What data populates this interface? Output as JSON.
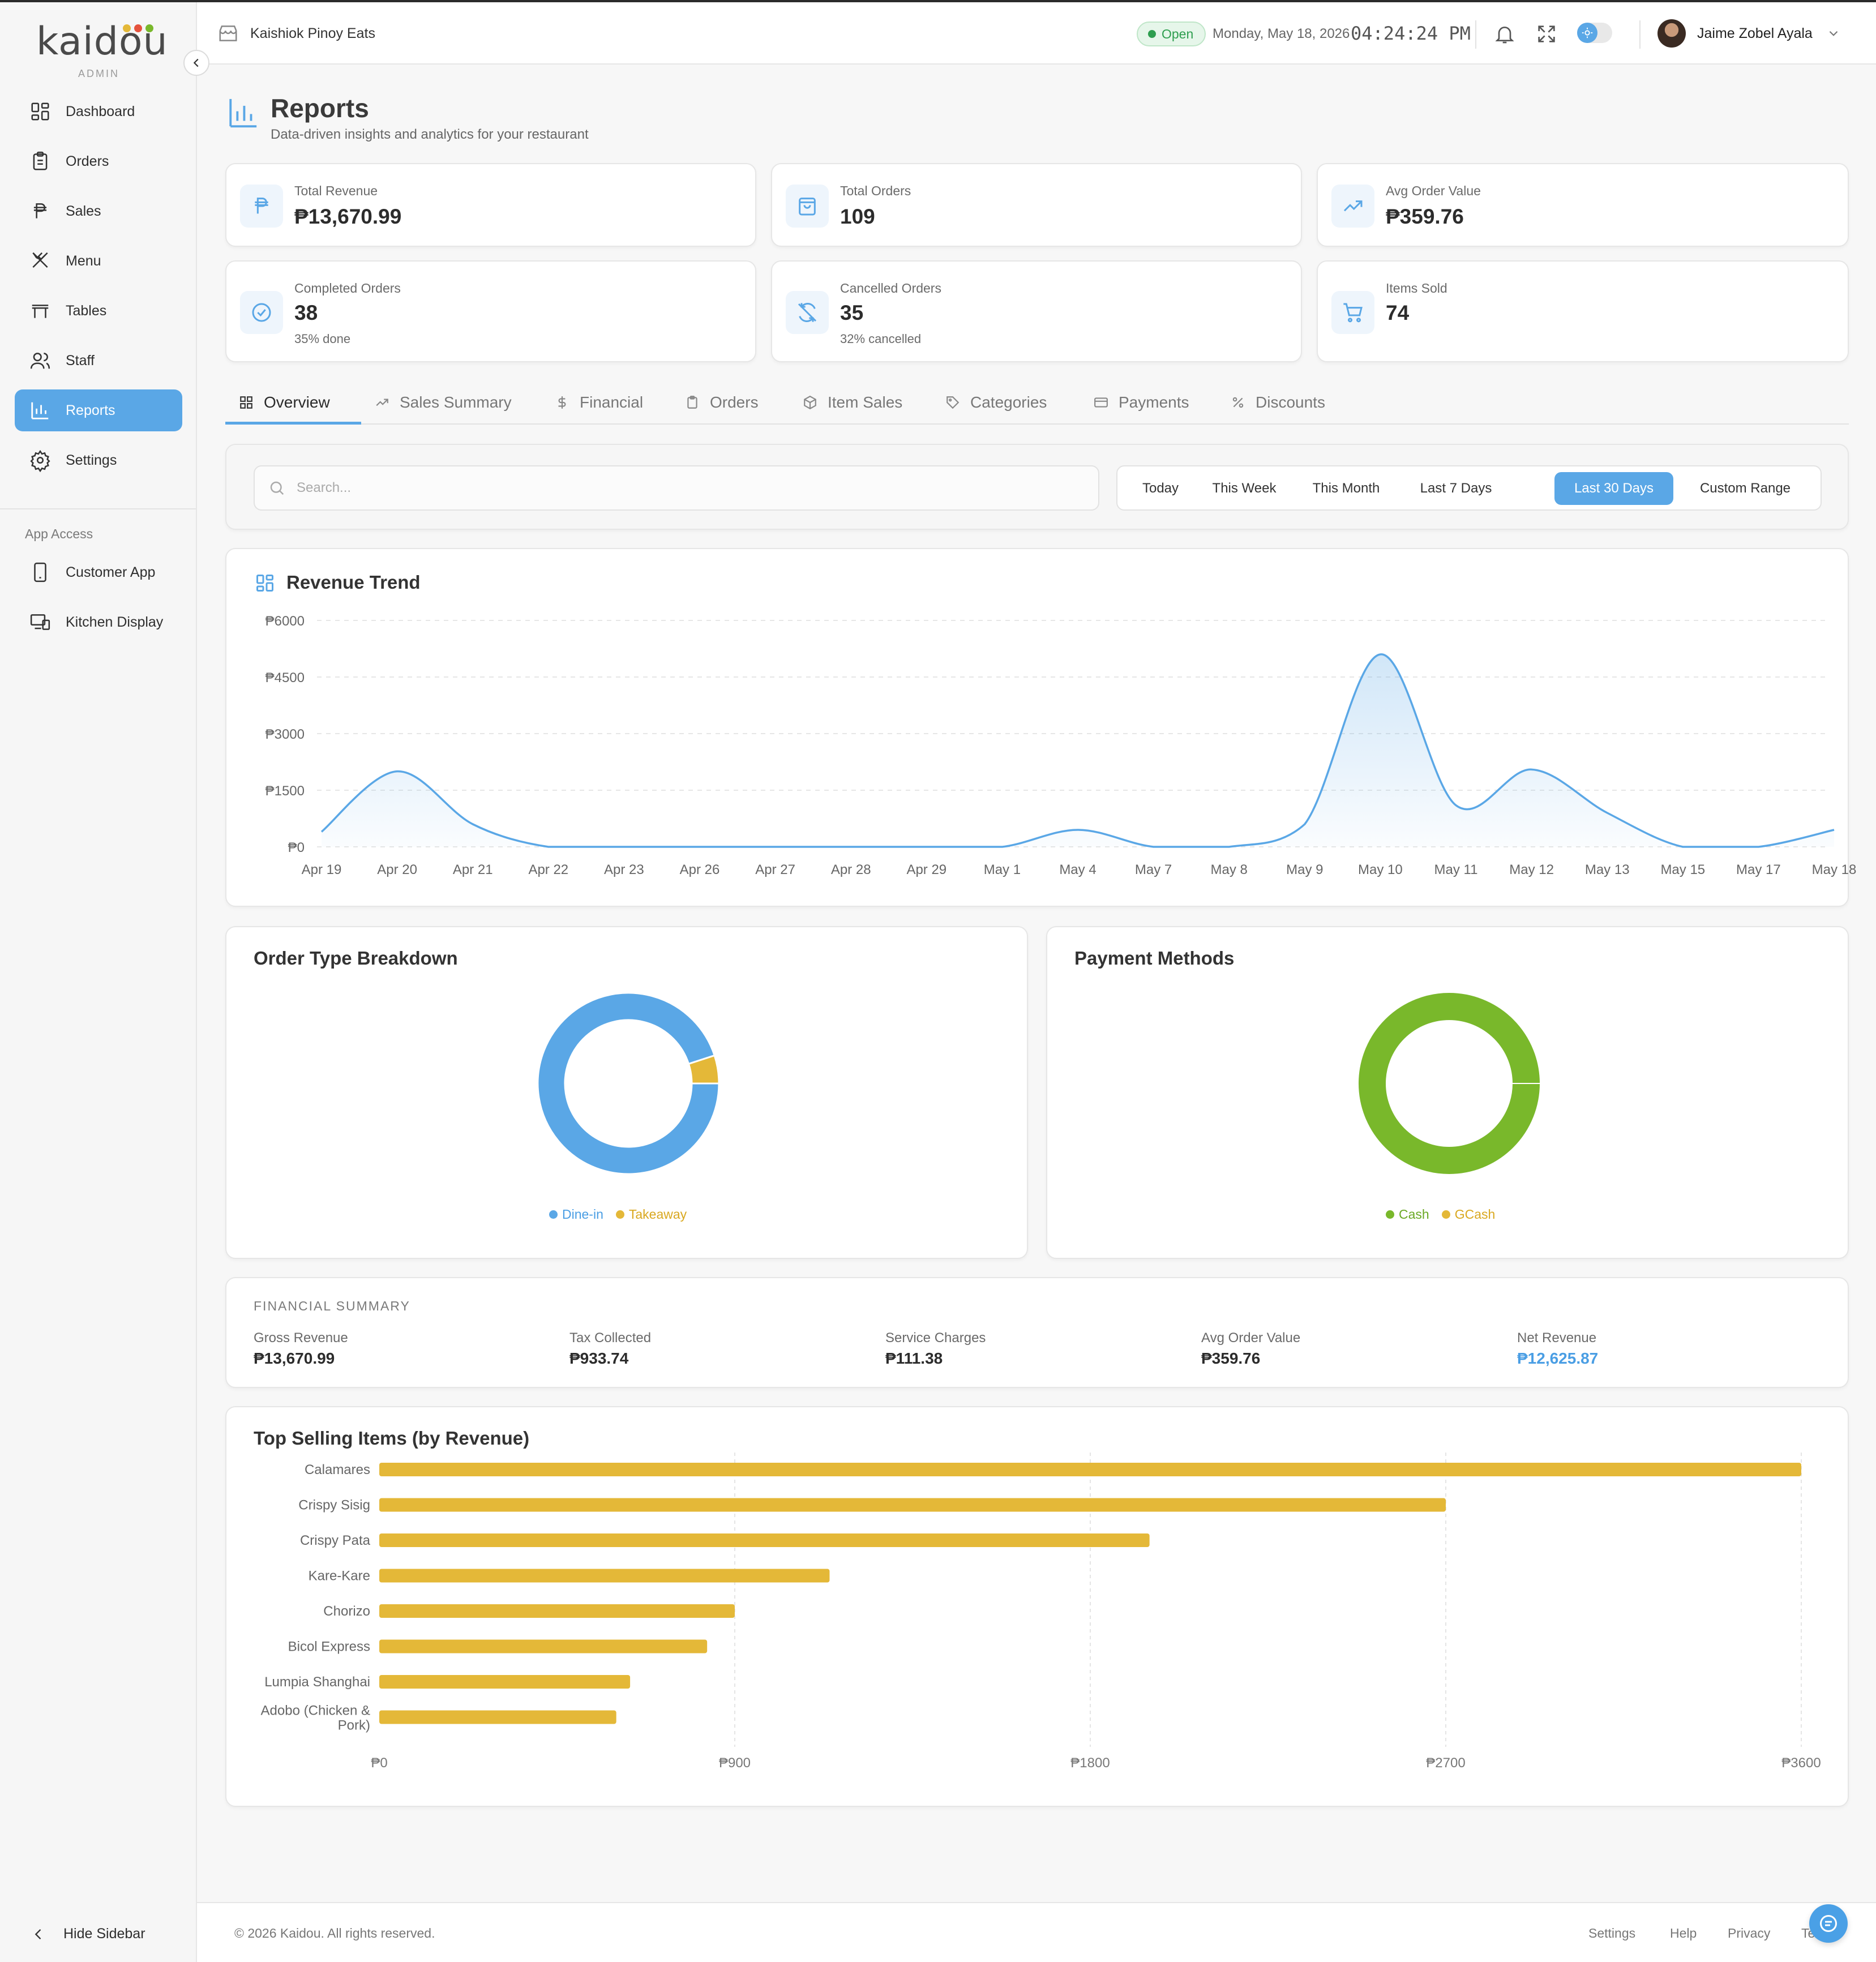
{
  "app": {
    "logo_text": "kaidou",
    "logo_sub": "ADMIN"
  },
  "sidebar": {
    "items": [
      {
        "label": "Dashboard",
        "icon": "grid-icon"
      },
      {
        "label": "Orders",
        "icon": "clipboard-icon"
      },
      {
        "label": "Sales",
        "icon": "peso-icon"
      },
      {
        "label": "Menu",
        "icon": "utensils-icon"
      },
      {
        "label": "Tables",
        "icon": "table-icon"
      },
      {
        "label": "Staff",
        "icon": "users-icon"
      },
      {
        "label": "Reports",
        "icon": "bar-chart-icon",
        "active": true
      },
      {
        "label": "Settings",
        "icon": "gear-icon"
      }
    ],
    "section_label": "App Access",
    "app_items": [
      {
        "label": "Customer App",
        "icon": "phone-icon"
      },
      {
        "label": "Kitchen Display",
        "icon": "monitor-icon"
      }
    ],
    "hide_label": "Hide Sidebar"
  },
  "header": {
    "store_name": "Kaishiok Pinoy Eats",
    "status": "Open",
    "date": "Monday, May 18, 2026",
    "time": "04:24:24 PM",
    "user_name": "Jaime Zobel Ayala"
  },
  "page": {
    "title": "Reports",
    "subtitle": "Data-driven insights and analytics for your restaurant"
  },
  "stats": [
    {
      "label": "Total Revenue",
      "value": "₱13,670.99",
      "sub": ""
    },
    {
      "label": "Total Orders",
      "value": "109",
      "sub": ""
    },
    {
      "label": "Avg Order Value",
      "value": "₱359.76",
      "sub": ""
    },
    {
      "label": "Completed Orders",
      "value": "38",
      "sub": "35% done"
    },
    {
      "label": "Cancelled Orders",
      "value": "35",
      "sub": "32% cancelled"
    },
    {
      "label": "Items Sold",
      "value": "74",
      "sub": ""
    }
  ],
  "tabs": [
    {
      "label": "Overview",
      "active": true
    },
    {
      "label": "Sales Summary"
    },
    {
      "label": "Financial"
    },
    {
      "label": "Orders"
    },
    {
      "label": "Item Sales"
    },
    {
      "label": "Categories"
    },
    {
      "label": "Payments"
    },
    {
      "label": "Discounts"
    }
  ],
  "filters": {
    "search_placeholder": "Search...",
    "ranges": [
      "Today",
      "This Week",
      "This Month",
      "Last 7 Days",
      "Last 30 Days",
      "Custom Range"
    ],
    "active_range": "Last 30 Days"
  },
  "colors": {
    "accent": "#5aa7e6",
    "gold": "#e4b838",
    "green": "#79b82b",
    "text_dark": "#2c2c2c"
  },
  "chart_data": [
    {
      "type": "area",
      "title": "Revenue Trend",
      "x": [
        "Apr 19",
        "Apr 20",
        "Apr 21",
        "Apr 22",
        "Apr 23",
        "Apr 26",
        "Apr 27",
        "Apr 28",
        "Apr 29",
        "May 1",
        "May 4",
        "May 7",
        "May 8",
        "May 9",
        "May 10",
        "May 11",
        "May 12",
        "May 13",
        "May 15",
        "May 17",
        "May 18"
      ],
      "series": [
        {
          "values": [
            400,
            2000,
            600,
            0,
            0,
            0,
            0,
            0,
            0,
            0,
            450,
            0,
            0,
            600,
            5100,
            1100,
            2050,
            900,
            0,
            0,
            450
          ]
        }
      ],
      "yticks": [
        "₱0",
        "₱1500",
        "₱3000",
        "₱4500",
        "₱6000"
      ],
      "ylim": [
        0,
        6000
      ],
      "grid": true
    },
    {
      "type": "pie",
      "title": "Order Type Breakdown",
      "categories": [
        "Dine-in",
        "Takeaway"
      ],
      "values": [
        95,
        5
      ],
      "colors": [
        "#5aa7e6",
        "#e4b838"
      ],
      "legend": "bottom"
    },
    {
      "type": "pie",
      "title": "Payment Methods",
      "categories": [
        "Cash",
        "GCash"
      ],
      "values": [
        100,
        0
      ],
      "colors": [
        "#79b82b",
        "#e4b838"
      ],
      "legend": "bottom"
    },
    {
      "type": "bar",
      "title": "Top Selling Items (by Revenue)",
      "orientation": "horizontal",
      "categories": [
        "Calamares",
        "Crispy Sisig",
        "Crispy Pata",
        "Kare-Kare",
        "Chorizo",
        "Bicol Express",
        "Lumpia Shanghai",
        "Adobo (Chicken & Pork)"
      ],
      "values": [
        3600,
        2700,
        1950,
        1140,
        900,
        830,
        635,
        600
      ],
      "xticks": [
        "₱0",
        "₱900",
        "₱1800",
        "₱2700",
        "₱3600"
      ],
      "xlim": [
        0,
        3600
      ],
      "color": "#e4b838"
    }
  ],
  "financial": {
    "title": "FINANCIAL SUMMARY",
    "items": [
      {
        "label": "Gross Revenue",
        "value": "₱13,670.99"
      },
      {
        "label": "Tax Collected",
        "value": "₱933.74"
      },
      {
        "label": "Service Charges",
        "value": "₱111.38"
      },
      {
        "label": "Avg Order Value",
        "value": "₱359.76"
      },
      {
        "label": "Net Revenue",
        "value": "₱12,625.87"
      }
    ]
  },
  "footer": {
    "copyright": "© 2026 Kaidou. All rights reserved.",
    "links": [
      "Settings",
      "Help",
      "Privacy",
      "Te"
    ]
  }
}
